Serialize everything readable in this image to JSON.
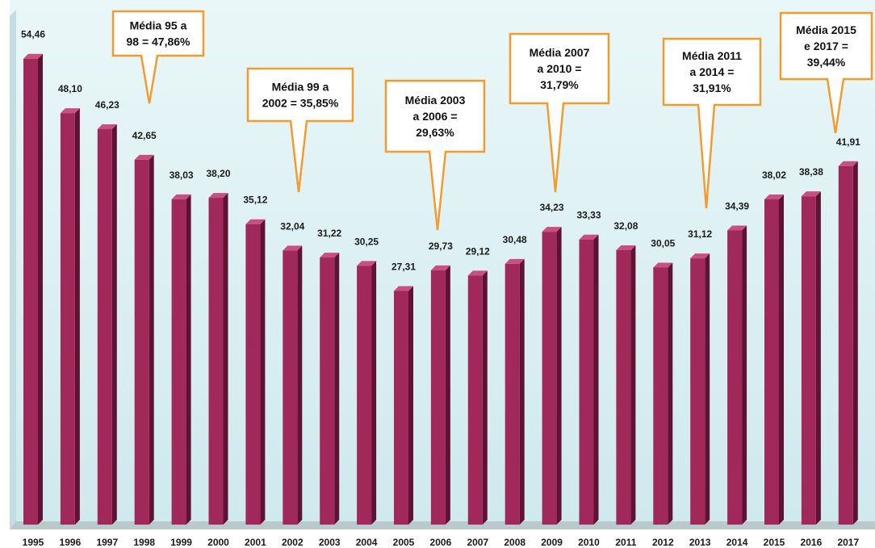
{
  "chart_data": {
    "type": "bar",
    "categories": [
      "1995",
      "1996",
      "1997",
      "1998",
      "1999",
      "2000",
      "2001",
      "2002",
      "2003",
      "2004",
      "2005",
      "2006",
      "2007",
      "2008",
      "2009",
      "2010",
      "2011",
      "2012",
      "2013",
      "2014",
      "2015",
      "2016",
      "2017"
    ],
    "values": [
      54.46,
      48.1,
      46.23,
      42.65,
      38.03,
      38.2,
      35.12,
      32.04,
      31.22,
      30.25,
      27.31,
      29.73,
      29.12,
      30.48,
      34.23,
      33.33,
      32.08,
      30.05,
      31.12,
      34.39,
      38.02,
      38.38,
      41.91
    ],
    "value_labels": [
      "54,46",
      "48,10",
      "46,23",
      "42,65",
      "38,03",
      "38,20",
      "35,12",
      "32,04",
      "31,22",
      "30,25",
      "27,31",
      "29,73",
      "29,12",
      "30,48",
      "34,23",
      "33,33",
      "32,08",
      "30,05",
      "31,12",
      "34,39",
      "38,02",
      "38,38",
      "41,91"
    ],
    "ylim": [
      0,
      60
    ],
    "grid": false,
    "legend": "none",
    "title": "",
    "xlabel": "",
    "ylabel": "",
    "annotations": [
      {
        "lines": [
          "Média 95 a",
          "98 = 47,86%"
        ],
        "points_to": "1998"
      },
      {
        "lines": [
          "Média 99 a",
          "2002 = 35,85%"
        ],
        "points_to": "2002"
      },
      {
        "lines": [
          "Média 2003",
          "a 2006 =",
          "29,63%"
        ],
        "points_to": "2006"
      },
      {
        "lines": [
          "Média 2007",
          "a 2010 =",
          "31,79%"
        ],
        "points_to": "2009"
      },
      {
        "lines": [
          "Média 2011",
          "a 2014 =",
          "31,91%"
        ],
        "points_to": "2013"
      },
      {
        "lines": [
          "Média 2015",
          "e 2017 =",
          "39,44%"
        ],
        "points_to": "2017"
      }
    ]
  },
  "colors": {
    "bar_front": "#a1285a",
    "bar_side": "#5e1335",
    "bar_top": "#c8507f",
    "background_top": "#eaf7f8",
    "background_bottom": "#cfe9ee",
    "floor": "#b9c9cc",
    "callout_border": "#f39b2e",
    "callout_fill": "#ffffff"
  }
}
